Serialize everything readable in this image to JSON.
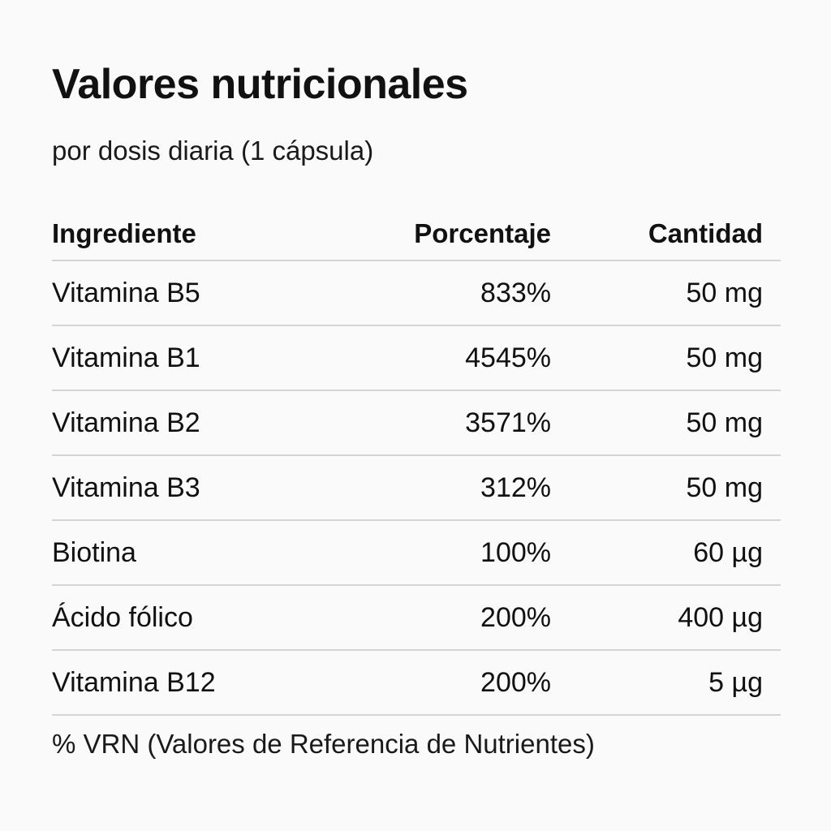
{
  "header": {
    "title": "Valores nutricionales",
    "subtitle": "por dosis diaria (1 cápsula)"
  },
  "table": {
    "columns": [
      "Ingrediente",
      "Porcentaje",
      "Cantidad"
    ],
    "rows": [
      {
        "ingredient": "Vitamina B5",
        "percent": "833%",
        "amount": "50 mg"
      },
      {
        "ingredient": "Vitamina B1",
        "percent": "4545%",
        "amount": "50 mg"
      },
      {
        "ingredient": "Vitamina B2",
        "percent": "3571%",
        "amount": "50 mg"
      },
      {
        "ingredient": "Vitamina B3",
        "percent": "312%",
        "amount": "50 mg"
      },
      {
        "ingredient": "Biotina",
        "percent": "100%",
        "amount": "60 µg"
      },
      {
        "ingredient": "Ácido fólico",
        "percent": "200%",
        "amount": "400 µg"
      },
      {
        "ingredient": "Vitamina B12",
        "percent": "200%",
        "amount": "5 µg"
      }
    ]
  },
  "footnote": "% VRN (Valores de Referencia de Nutrientes)",
  "colors": {
    "background": "#fafafa",
    "text": "#111111",
    "divider": "#d4d4d4"
  }
}
